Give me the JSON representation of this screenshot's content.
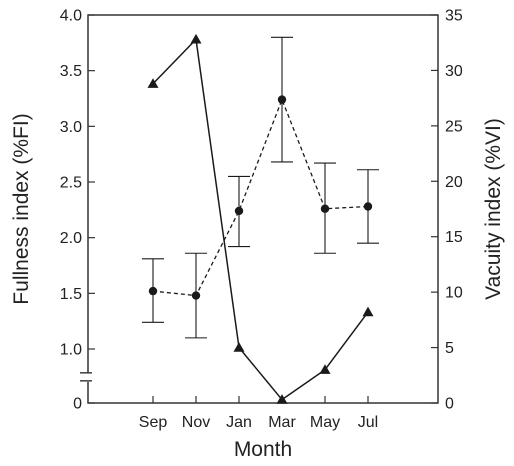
{
  "chart_data": {
    "type": "line",
    "xlabel": "Month",
    "ylabel_left": "Fullness index (%FI)",
    "ylabel_right": "Vacuity index (%VI)",
    "categories": [
      "Sep",
      "Nov",
      "Jan",
      "Mar",
      "May",
      "Jul"
    ],
    "left_axis": {
      "ticks": [
        "0",
        "1.0",
        "1.5",
        "2.0",
        "2.5",
        "3.0",
        "3.5",
        "4.0"
      ],
      "axis_break": true,
      "break_value": 0.75,
      "ylim": [
        0.75,
        4.0
      ]
    },
    "right_axis": {
      "ticks": [
        "0",
        "5",
        "10",
        "15",
        "20",
        "25",
        "30",
        "35"
      ],
      "ylim": [
        0,
        35
      ]
    },
    "series": [
      {
        "axis": "left",
        "style": "dashed",
        "marker": "circle",
        "values": [
          1.52,
          1.48,
          2.24,
          3.24,
          2.26,
          2.28
        ],
        "error_low": [
          1.24,
          1.1,
          1.92,
          2.68,
          1.86,
          1.95
        ],
        "error_high": [
          1.81,
          1.86,
          2.55,
          3.8,
          2.67,
          2.61
        ]
      },
      {
        "axis": "right",
        "style": "solid",
        "marker": "triangle",
        "values": [
          28.8,
          32.8,
          5.0,
          0.3,
          3.0,
          8.2
        ]
      }
    ],
    "colors": {
      "line": "#1a1a1a",
      "frame": "#333333",
      "text": "#222222"
    }
  }
}
